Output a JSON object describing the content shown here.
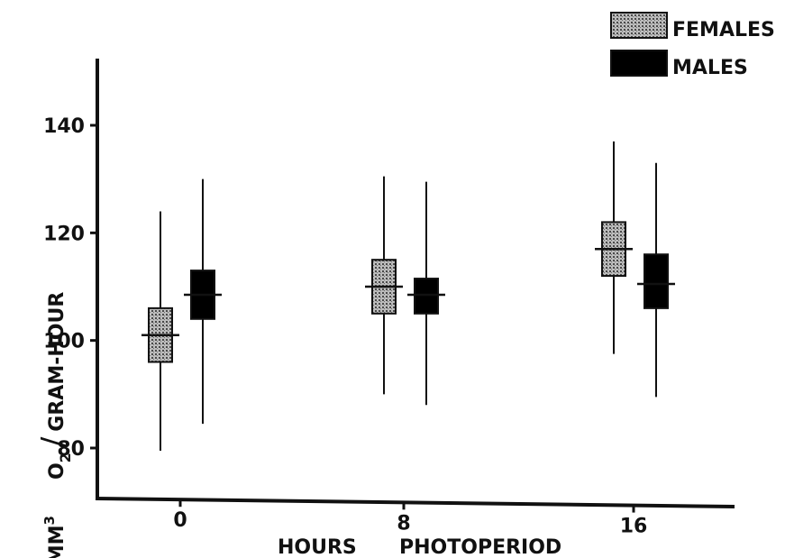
{
  "chart_data": {
    "type": "box",
    "categories": [
      "0",
      "8",
      "16"
    ],
    "xlabel_left": "HOURS",
    "xlabel_right": "PHOTOPERIOD",
    "ylabel_main": "MM",
    "ylabel_main_sup": "3",
    "ylabel_o": "O",
    "ylabel_o_sub": "2",
    "ylabel_slash": "/",
    "ylabel_rest": "GRAM-HOUR",
    "yticks": [
      80,
      100,
      120,
      140
    ],
    "ylim": [
      70,
      152
    ],
    "legend_position": "top-right",
    "series": [
      {
        "name": "FEMALES",
        "fill": "stippled-gray",
        "color": "#8c8c8c",
        "data": [
          {
            "x": "0",
            "min": 79.5,
            "q1": 96,
            "mean": 101,
            "q3": 106,
            "max": 124
          },
          {
            "x": "8",
            "min": 90,
            "q1": 105,
            "mean": 110,
            "q3": 115,
            "max": 130.5
          },
          {
            "x": "16",
            "min": 97.5,
            "q1": 112,
            "mean": 117,
            "q3": 122,
            "max": 137
          }
        ]
      },
      {
        "name": "MALES",
        "fill": "solid",
        "color": "#000000",
        "data": [
          {
            "x": "0",
            "min": 84.5,
            "q1": 104,
            "mean": 108.5,
            "q3": 113,
            "max": 130
          },
          {
            "x": "8",
            "min": 88,
            "q1": 105,
            "mean": 108.5,
            "q3": 111.5,
            "max": 129.5
          },
          {
            "x": "16",
            "min": 89.5,
            "q1": 106,
            "mean": 110.5,
            "q3": 116,
            "max": 133
          }
        ]
      }
    ]
  }
}
